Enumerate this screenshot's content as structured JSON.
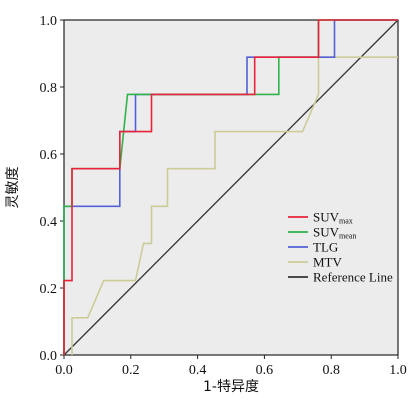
{
  "chart_data": {
    "type": "line",
    "xlabel": "1-特异度",
    "ylabel": "灵敏度",
    "xlim": [
      0,
      1
    ],
    "ylim": [
      0,
      1
    ],
    "x_ticks": [
      "0.0",
      "0.2",
      "0.4",
      "0.6",
      "0.8",
      "1.0"
    ],
    "y_ticks": [
      "0.0",
      "0.2",
      "0.4",
      "0.6",
      "0.8",
      "1.0"
    ],
    "background": "#ececec",
    "legend_position": "right",
    "series": [
      {
        "name": "SUVmax",
        "label_main": "SUV",
        "label_sub": "max",
        "color": "#e8233a",
        "points": [
          [
            0,
            0
          ],
          [
            0,
            0.222
          ],
          [
            0.024,
            0.222
          ],
          [
            0.024,
            0.556
          ],
          [
            0.167,
            0.556
          ],
          [
            0.167,
            0.667
          ],
          [
            0.262,
            0.667
          ],
          [
            0.262,
            0.778
          ],
          [
            0.571,
            0.778
          ],
          [
            0.571,
            0.889
          ],
          [
            0.762,
            0.889
          ],
          [
            0.762,
            1.0
          ],
          [
            1.0,
            1.0
          ]
        ]
      },
      {
        "name": "SUVmean",
        "label_main": "SUV",
        "label_sub": "mean",
        "color": "#2fb34a",
        "points": [
          [
            0,
            0
          ],
          [
            0,
            0.444
          ],
          [
            0.024,
            0.444
          ],
          [
            0.024,
            0.556
          ],
          [
            0.167,
            0.556
          ],
          [
            0.19,
            0.778
          ],
          [
            0.643,
            0.778
          ],
          [
            0.643,
            0.889
          ],
          [
            0.762,
            0.889
          ],
          [
            0.762,
            1.0
          ],
          [
            1.0,
            1.0
          ]
        ]
      },
      {
        "name": "TLG",
        "label_main": "TLG",
        "label_sub": "",
        "color": "#5360d6",
        "points": [
          [
            0,
            0
          ],
          [
            0,
            0.444
          ],
          [
            0.167,
            0.444
          ],
          [
            0.167,
            0.667
          ],
          [
            0.214,
            0.667
          ],
          [
            0.214,
            0.778
          ],
          [
            0.31,
            0.778
          ],
          [
            0.31,
            0.778
          ],
          [
            0.548,
            0.778
          ],
          [
            0.548,
            0.889
          ],
          [
            0.81,
            0.889
          ],
          [
            0.81,
            1.0
          ],
          [
            1.0,
            1.0
          ]
        ]
      },
      {
        "name": "MTV",
        "label_main": "MTV",
        "label_sub": "",
        "color": "#cccc99",
        "points": [
          [
            0.024,
            0
          ],
          [
            0.024,
            0.111
          ],
          [
            0.071,
            0.111
          ],
          [
            0.119,
            0.222
          ],
          [
            0.214,
            0.222
          ],
          [
            0.238,
            0.333
          ],
          [
            0.262,
            0.333
          ],
          [
            0.262,
            0.444
          ],
          [
            0.31,
            0.444
          ],
          [
            0.31,
            0.556
          ],
          [
            0.452,
            0.556
          ],
          [
            0.452,
            0.667
          ],
          [
            0.714,
            0.667
          ],
          [
            0.762,
            0.778
          ],
          [
            0.762,
            0.889
          ],
          [
            1.0,
            0.889
          ]
        ]
      },
      {
        "name": "Reference Line",
        "label_main": "Reference Line",
        "label_sub": "",
        "color": "#333333",
        "points": [
          [
            0,
            0
          ],
          [
            1,
            1
          ]
        ]
      }
    ]
  }
}
